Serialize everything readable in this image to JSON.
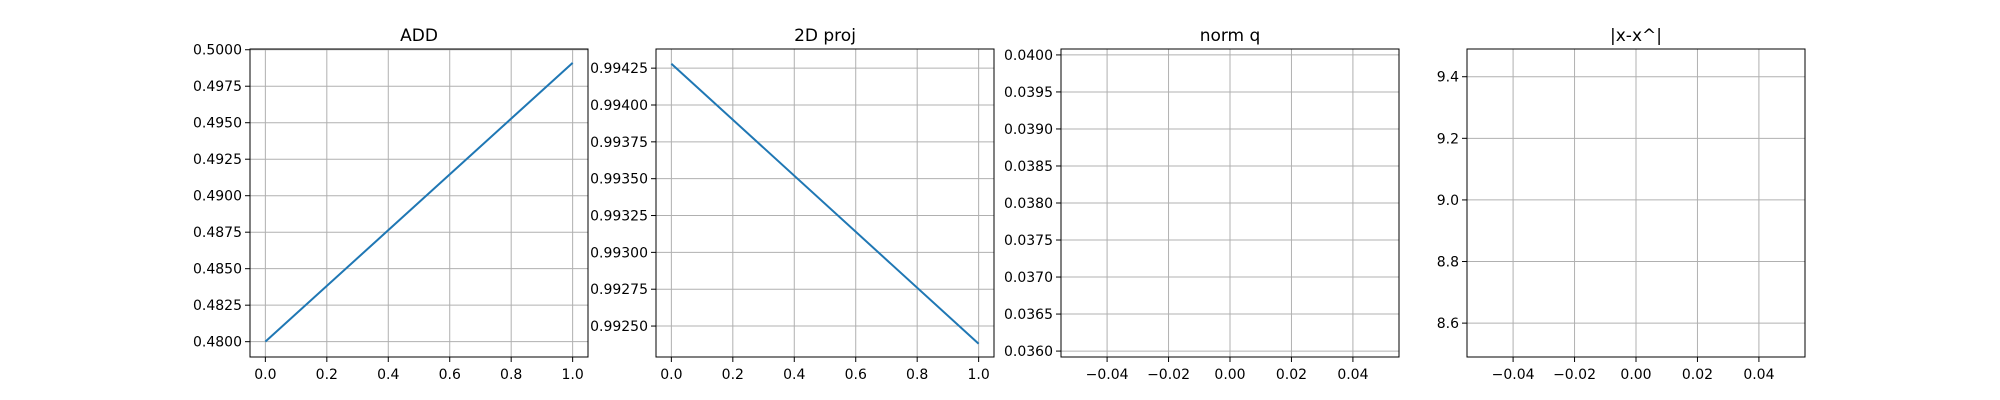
{
  "chart_data": [
    {
      "type": "line",
      "title": "ADD",
      "xlim": [
        -0.05,
        1.05
      ],
      "ylim": [
        0.47895,
        0.50005
      ],
      "xticks": [
        "0.0",
        "0.2",
        "0.4",
        "0.6",
        "0.8",
        "1.0"
      ],
      "yticks": [
        "0.4800",
        "0.4825",
        "0.4850",
        "0.4875",
        "0.4900",
        "0.4925",
        "0.4950",
        "0.4975",
        "0.5000"
      ],
      "grid": true,
      "line_color": "#1f77b4",
      "series": [
        {
          "x": [
            0.0,
            1.0
          ],
          "y": [
            0.48,
            0.4991
          ]
        }
      ]
    },
    {
      "type": "line",
      "title": "2D proj",
      "xlim": [
        -0.05,
        1.05
      ],
      "ylim": [
        0.99229,
        0.99438
      ],
      "xticks": [
        "0.0",
        "0.2",
        "0.4",
        "0.6",
        "0.8",
        "1.0"
      ],
      "yticks": [
        "0.99250",
        "0.99275",
        "0.99300",
        "0.99325",
        "0.99350",
        "0.99375",
        "0.99400",
        "0.99425"
      ],
      "grid": true,
      "line_color": "#1f77b4",
      "series": [
        {
          "x": [
            0.0,
            1.0
          ],
          "y": [
            0.99428,
            0.99238
          ]
        }
      ]
    },
    {
      "type": "line",
      "title": "norm q",
      "xlim": [
        -0.055,
        0.055
      ],
      "ylim": [
        0.03592,
        0.04008
      ],
      "xticks": [
        "−0.04",
        "−0.02",
        "0.00",
        "0.02",
        "0.04"
      ],
      "yticks": [
        "0.0360",
        "0.0365",
        "0.0370",
        "0.0375",
        "0.0380",
        "0.0385",
        "0.0390",
        "0.0395",
        "0.0400"
      ],
      "grid": true,
      "line_color": "#1f77b4",
      "series": []
    },
    {
      "type": "line",
      "title": "|x-x^|",
      "xlim": [
        -0.055,
        0.055
      ],
      "ylim": [
        8.49,
        9.49
      ],
      "xticks": [
        "−0.04",
        "−0.02",
        "0.00",
        "0.02",
        "0.04"
      ],
      "yticks": [
        "8.6",
        "8.8",
        "9.0",
        "9.2",
        "9.4"
      ],
      "grid": true,
      "line_color": "#1f77b4",
      "series": []
    }
  ]
}
